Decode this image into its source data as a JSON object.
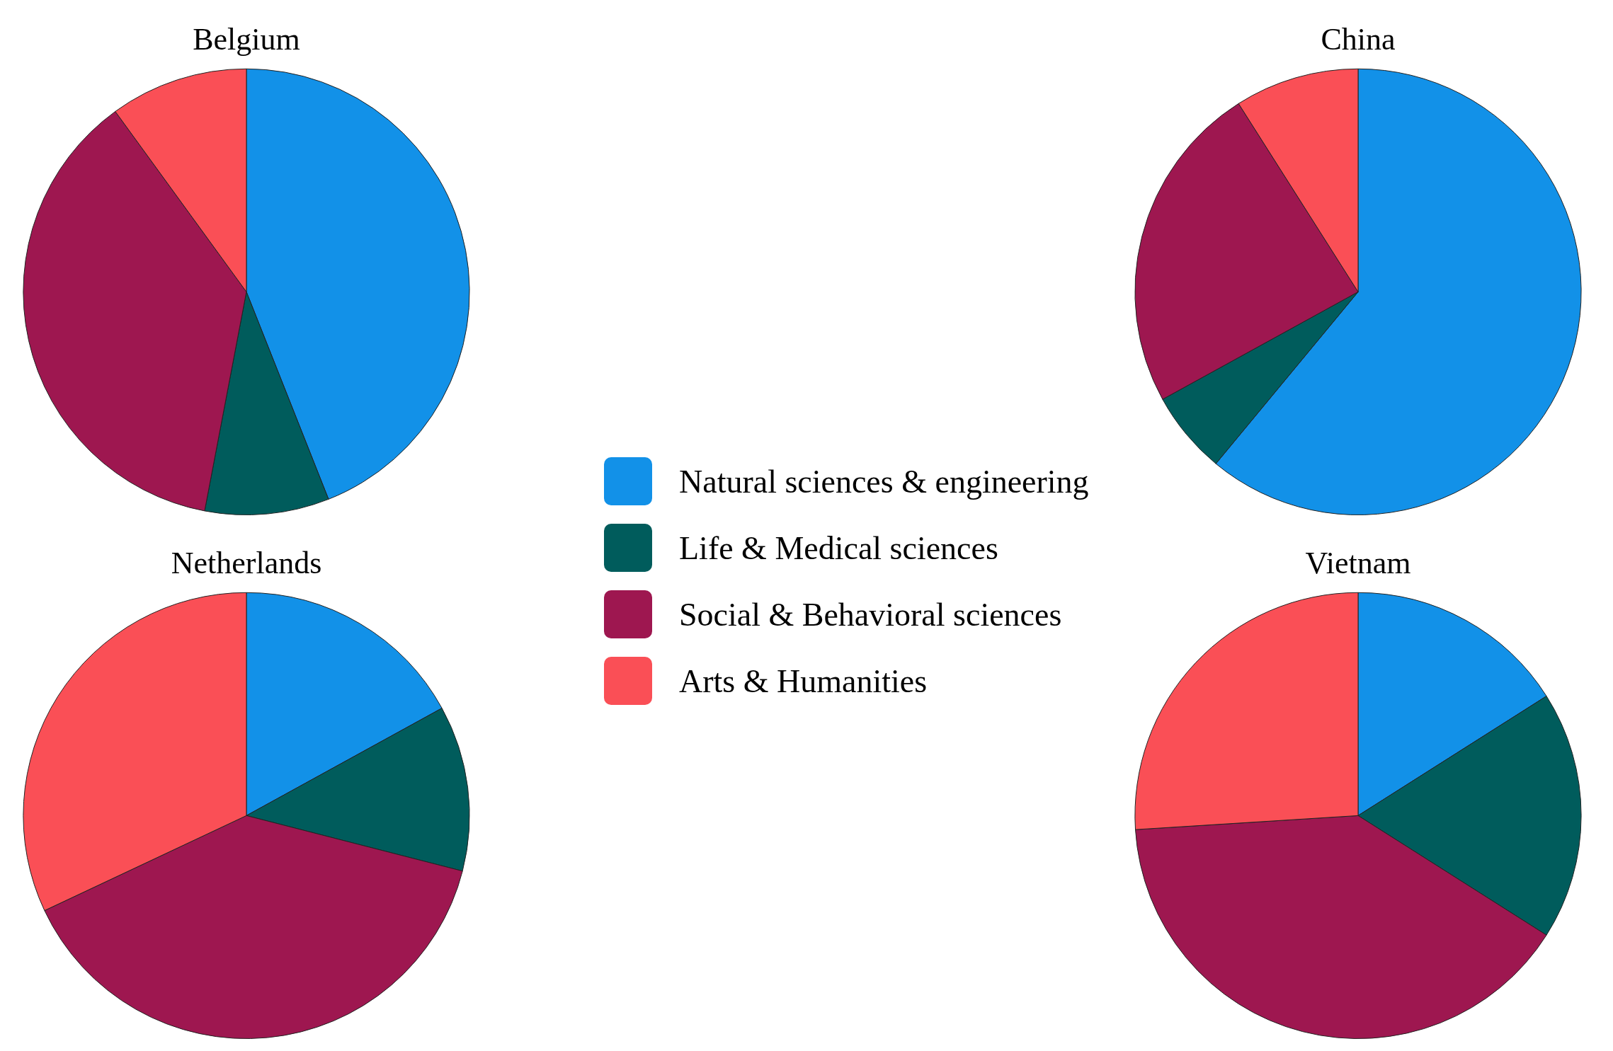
{
  "chart_data": [
    {
      "type": "pie",
      "title": "Belgium",
      "categories": [
        "Natural sciences & engineering",
        "Life & Medical sciences",
        "Social & Behavioral sciences",
        "Arts & Humanities"
      ],
      "values": [
        44,
        9,
        37,
        10
      ],
      "colors": [
        "#1291e8",
        "#005c5c",
        "#9e1750",
        "#fa4f56"
      ],
      "legend": "right"
    },
    {
      "type": "pie",
      "title": "China",
      "categories": [
        null,
        null,
        null,
        null
      ],
      "values": [
        61,
        6,
        24,
        9
      ],
      "colors": [
        "#1291e8",
        "#005c5c",
        "#9e1750",
        "#fa4f56"
      ]
    },
    {
      "type": "pie",
      "title": "Netherlands",
      "categories": [
        null,
        null,
        null,
        null
      ],
      "values": [
        17,
        12,
        39,
        32
      ],
      "colors": [
        "#1291e8",
        "#005c5c",
        "#9e1750",
        "#fa4f56"
      ]
    },
    {
      "type": "pie",
      "title": "Vietnam",
      "categories": [
        null,
        null,
        null,
        null
      ],
      "values": [
        16,
        18,
        40,
        26
      ],
      "colors": [
        "#1291e8",
        "#005c5c",
        "#9e1750",
        "#fa4f56"
      ]
    }
  ]
}
